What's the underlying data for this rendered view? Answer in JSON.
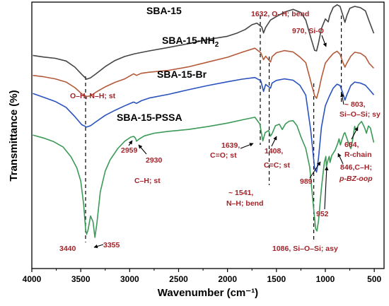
{
  "chart_data": {
    "type": "line",
    "xlabel": "Wavenumber (cm⁻¹)",
    "ylabel": "Transmittance (%)",
    "xlim": [
      4000,
      400
    ],
    "x_reversed": true,
    "x_ticks": [
      4000,
      3500,
      3000,
      2500,
      2000,
      1500,
      1000,
      500
    ],
    "y_ticks": [],
    "grid": false,
    "legend": "none",
    "series": [
      {
        "name": "SBA-15",
        "color": "#454545",
        "points": [
          [
            3990,
            0.8
          ],
          [
            3880,
            0.794
          ],
          [
            3760,
            0.789
          ],
          [
            3650,
            0.779
          ],
          [
            3560,
            0.756
          ],
          [
            3490,
            0.729
          ],
          [
            3440,
            0.711
          ],
          [
            3400,
            0.716
          ],
          [
            3340,
            0.732
          ],
          [
            3250,
            0.758
          ],
          [
            3150,
            0.781
          ],
          [
            3050,
            0.796
          ],
          [
            2950,
            0.806
          ],
          [
            2800,
            0.817
          ],
          [
            2600,
            0.83
          ],
          [
            2400,
            0.844
          ],
          [
            2200,
            0.86
          ],
          [
            2000,
            0.872
          ],
          [
            1900,
            0.884
          ],
          [
            1820,
            0.897
          ],
          [
            1750,
            0.915
          ],
          [
            1700,
            0.921
          ],
          [
            1650,
            0.907
          ],
          [
            1632,
            0.884
          ],
          [
            1610,
            0.905
          ],
          [
            1560,
            0.933
          ],
          [
            1500,
            0.946
          ],
          [
            1420,
            0.962
          ],
          [
            1330,
            0.973
          ],
          [
            1250,
            0.961
          ],
          [
            1200,
            0.933
          ],
          [
            1150,
            0.868
          ],
          [
            1110,
            0.819
          ],
          [
            1090,
            0.817
          ],
          [
            1070,
            0.846
          ],
          [
            1040,
            0.901
          ],
          [
            1000,
            0.937
          ],
          [
            970,
            0.926
          ],
          [
            955,
            0.95
          ],
          [
            920,
            0.98
          ],
          [
            880,
            0.99
          ],
          [
            850,
            0.984
          ],
          [
            820,
            0.949
          ],
          [
            800,
            0.924
          ],
          [
            780,
            0.949
          ],
          [
            750,
            0.977
          ],
          [
            700,
            0.984
          ],
          [
            640,
            0.979
          ],
          [
            590,
            0.967
          ],
          [
            550,
            0.926
          ],
          [
            505,
            0.883
          ]
        ]
      },
      {
        "name": "SBA-15-NH₂",
        "color": "#b35a39",
        "points": [
          [
            3990,
            0.725
          ],
          [
            3880,
            0.72
          ],
          [
            3760,
            0.712
          ],
          [
            3650,
            0.7
          ],
          [
            3560,
            0.679
          ],
          [
            3490,
            0.656
          ],
          [
            3440,
            0.646
          ],
          [
            3400,
            0.648
          ],
          [
            3340,
            0.663
          ],
          [
            3250,
            0.682
          ],
          [
            3150,
            0.699
          ],
          [
            3050,
            0.712
          ],
          [
            2960,
            0.731
          ],
          [
            2930,
            0.725
          ],
          [
            2880,
            0.733
          ],
          [
            2800,
            0.737
          ],
          [
            2600,
            0.744
          ],
          [
            2400,
            0.757
          ],
          [
            2200,
            0.775
          ],
          [
            2000,
            0.793
          ],
          [
            1850,
            0.812
          ],
          [
            1720,
            0.827
          ],
          [
            1660,
            0.81
          ],
          [
            1632,
            0.784
          ],
          [
            1610,
            0.797
          ],
          [
            1560,
            0.775
          ],
          [
            1545,
            0.795
          ],
          [
            1500,
            0.81
          ],
          [
            1420,
            0.818
          ],
          [
            1330,
            0.813
          ],
          [
            1260,
            0.794
          ],
          [
            1200,
            0.773
          ],
          [
            1150,
            0.703
          ],
          [
            1110,
            0.649
          ],
          [
            1090,
            0.639
          ],
          [
            1070,
            0.664
          ],
          [
            1040,
            0.716
          ],
          [
            1000,
            0.771
          ],
          [
            960,
            0.79
          ],
          [
            920,
            0.807
          ],
          [
            880,
            0.816
          ],
          [
            850,
            0.804
          ],
          [
            820,
            0.773
          ],
          [
            800,
            0.756
          ],
          [
            780,
            0.771
          ],
          [
            740,
            0.797
          ],
          [
            700,
            0.812
          ],
          [
            640,
            0.808
          ],
          [
            590,
            0.795
          ],
          [
            550,
            0.769
          ],
          [
            505,
            0.752
          ]
        ]
      },
      {
        "name": "SBA-15-Br",
        "color": "#2a52be",
        "points": [
          [
            3990,
            0.657
          ],
          [
            3880,
            0.643
          ],
          [
            3760,
            0.627
          ],
          [
            3650,
            0.605
          ],
          [
            3560,
            0.57
          ],
          [
            3490,
            0.54
          ],
          [
            3440,
            0.531
          ],
          [
            3400,
            0.536
          ],
          [
            3340,
            0.552
          ],
          [
            3250,
            0.575
          ],
          [
            3150,
            0.594
          ],
          [
            3050,
            0.611
          ],
          [
            2960,
            0.625
          ],
          [
            2930,
            0.62
          ],
          [
            2880,
            0.63
          ],
          [
            2800,
            0.64
          ],
          [
            2600,
            0.654
          ],
          [
            2400,
            0.671
          ],
          [
            2200,
            0.687
          ],
          [
            2000,
            0.701
          ],
          [
            1850,
            0.711
          ],
          [
            1720,
            0.717
          ],
          [
            1660,
            0.705
          ],
          [
            1632,
            0.665
          ],
          [
            1610,
            0.691
          ],
          [
            1560,
            0.677
          ],
          [
            1545,
            0.696
          ],
          [
            1500,
            0.706
          ],
          [
            1420,
            0.712
          ],
          [
            1330,
            0.707
          ],
          [
            1260,
            0.688
          ],
          [
            1200,
            0.651
          ],
          [
            1150,
            0.52
          ],
          [
            1110,
            0.377
          ],
          [
            1090,
            0.362
          ],
          [
            1070,
            0.414
          ],
          [
            1040,
            0.531
          ],
          [
            1000,
            0.611
          ],
          [
            960,
            0.646
          ],
          [
            920,
            0.677
          ],
          [
            880,
            0.692
          ],
          [
            850,
            0.687
          ],
          [
            820,
            0.657
          ],
          [
            800,
            0.632
          ],
          [
            780,
            0.652
          ],
          [
            740,
            0.687
          ],
          [
            700,
            0.7
          ],
          [
            640,
            0.696
          ],
          [
            590,
            0.688
          ],
          [
            550,
            0.671
          ],
          [
            505,
            0.652
          ]
        ]
      },
      {
        "name": "SBA-15-PSSA",
        "color": "#3b9a56",
        "points": [
          [
            3990,
            0.501
          ],
          [
            3880,
            0.49
          ],
          [
            3780,
            0.477
          ],
          [
            3680,
            0.456
          ],
          [
            3600,
            0.42
          ],
          [
            3540,
            0.378
          ],
          [
            3500,
            0.328
          ],
          [
            3470,
            0.24
          ],
          [
            3450,
            0.145
          ],
          [
            3440,
            0.129
          ],
          [
            3425,
            0.145
          ],
          [
            3400,
            0.197
          ],
          [
            3375,
            0.176
          ],
          [
            3355,
            0.117
          ],
          [
            3335,
            0.17
          ],
          [
            3300,
            0.288
          ],
          [
            3250,
            0.366
          ],
          [
            3200,
            0.408
          ],
          [
            3120,
            0.451
          ],
          [
            3050,
            0.478
          ],
          [
            2990,
            0.493
          ],
          [
            2959,
            0.496
          ],
          [
            2940,
            0.489
          ],
          [
            2930,
            0.478
          ],
          [
            2900,
            0.487
          ],
          [
            2850,
            0.498
          ],
          [
            2750,
            0.508
          ],
          [
            2600,
            0.515
          ],
          [
            2400,
            0.522
          ],
          [
            2200,
            0.533
          ],
          [
            2000,
            0.546
          ],
          [
            1850,
            0.558
          ],
          [
            1720,
            0.568
          ],
          [
            1670,
            0.543
          ],
          [
            1639,
            0.479
          ],
          [
            1615,
            0.51
          ],
          [
            1580,
            0.518
          ],
          [
            1560,
            0.497
          ],
          [
            1541,
            0.509
          ],
          [
            1510,
            0.536
          ],
          [
            1470,
            0.542
          ],
          [
            1440,
            0.522
          ],
          [
            1408,
            0.543
          ],
          [
            1370,
            0.553
          ],
          [
            1330,
            0.555
          ],
          [
            1290,
            0.536
          ],
          [
            1250,
            0.495
          ],
          [
            1200,
            0.451
          ],
          [
            1160,
            0.381
          ],
          [
            1130,
            0.265
          ],
          [
            1100,
            0.15
          ],
          [
            1086,
            0.141
          ],
          [
            1070,
            0.178
          ],
          [
            1040,
            0.303
          ],
          [
            1010,
            0.399
          ],
          [
            995,
            0.421
          ],
          [
            989,
            0.382
          ],
          [
            975,
            0.405
          ],
          [
            960,
            0.421
          ],
          [
            952,
            0.398
          ],
          [
            935,
            0.424
          ],
          [
            900,
            0.444
          ],
          [
            875,
            0.468
          ],
          [
            860,
            0.487
          ],
          [
            846,
            0.464
          ],
          [
            830,
            0.484
          ],
          [
            810,
            0.506
          ],
          [
            800,
            0.51
          ],
          [
            770,
            0.478
          ],
          [
            740,
            0.45
          ],
          [
            720,
            0.484
          ],
          [
            700,
            0.534
          ],
          [
            690,
            0.523
          ],
          [
            684,
            0.52
          ],
          [
            660,
            0.54
          ],
          [
            630,
            0.552
          ],
          [
            600,
            0.53
          ],
          [
            580,
            0.508
          ],
          [
            560,
            0.535
          ],
          [
            540,
            0.528
          ],
          [
            505,
            0.473
          ]
        ]
      }
    ],
    "series_labels": [
      "SBA-15",
      "SBA-15-NH",
      "2",
      "SBA-15-Br",
      "SBA-15-PSSA"
    ],
    "annotations": {
      "a1632": "1632, O–H; bend",
      "a970": "970, Si-O",
      "aOH": "O–H, N–H; st",
      "a803a": "~ 803,",
      "a803b": "Si–O–Si; sy",
      "a1639a": "1639,",
      "a1639b": "C=O; st",
      "a1408a": "1408,",
      "a1408b": "C=C; st",
      "a2959": "2959",
      "a2930": "2930",
      "aCH": "C–H; st",
      "a684a": "684,",
      "a684b": "R-chain",
      "a846a": "846,C–H;",
      "a846b": "p-BZ-oop",
      "a1541a": "~ 1541,",
      "a1541b": "N–H; bend",
      "a989": "989",
      "a952": "952",
      "a3440": "3440",
      "a3355": "3355",
      "a1086": "1086, Si–O–Si; asy"
    }
  }
}
